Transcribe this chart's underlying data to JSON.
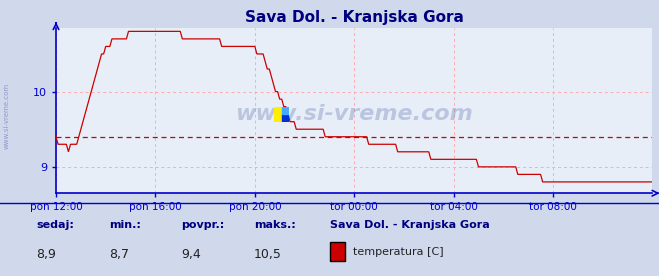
{
  "title": "Sava Dol. - Kranjska Gora",
  "bg_color": "#d0d8ec",
  "plot_bg_color": "#e8eef8",
  "line_color": "#cc0000",
  "grid_color": "#ffaaaa",
  "axis_color": "#0000cc",
  "title_color": "#000080",
  "label_color": "#000080",
  "watermark": "www.si-vreme.com",
  "ylim": [
    8.65,
    10.85
  ],
  "yticks": [
    9,
    10
  ],
  "avg_line": 9.4,
  "x_labels": [
    "pon 12:00",
    "pon 16:00",
    "pon 20:00",
    "tor 00:00",
    "tor 04:00",
    "tor 08:00"
  ],
  "x_tick_positions": [
    0,
    48,
    96,
    144,
    192,
    240
  ],
  "n_points": 289,
  "x_max": 288,
  "footer_labels": [
    "sedaj:",
    "min.:",
    "povpr.:",
    "maks.:"
  ],
  "footer_values": [
    "8,9",
    "8,7",
    "9,4",
    "10,5"
  ],
  "legend_station": "Sava Dol. - Kranjska Gora",
  "legend_series": "temperatura [C]",
  "legend_color": "#cc0000",
  "curve_x": [
    0,
    3,
    6,
    10,
    15,
    22,
    28,
    35,
    48,
    60,
    70,
    80,
    90,
    96,
    100,
    105,
    110,
    115,
    120,
    130,
    140,
    150,
    160,
    170,
    180,
    192,
    204,
    216,
    228,
    240,
    252,
    265,
    275,
    288
  ],
  "curve_y": [
    9.35,
    9.3,
    9.25,
    9.3,
    9.8,
    10.5,
    10.7,
    10.75,
    10.75,
    10.75,
    10.7,
    10.65,
    10.6,
    10.55,
    10.5,
    10.1,
    9.8,
    9.55,
    9.5,
    9.45,
    9.4,
    9.35,
    9.3,
    9.2,
    9.15,
    9.1,
    9.05,
    9.0,
    8.9,
    8.8,
    8.75,
    8.75,
    8.8,
    8.85
  ]
}
